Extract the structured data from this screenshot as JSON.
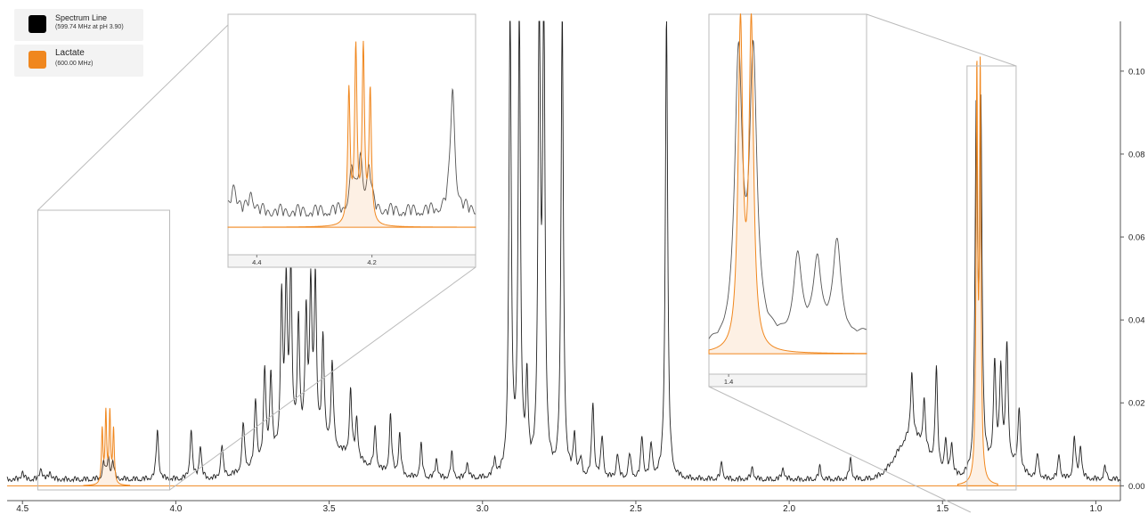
{
  "legend": [
    {
      "name": "Spectrum Line",
      "sub": "(599.74 MHz at pH 3.90)",
      "color": "#000000"
    },
    {
      "name": "Lactate",
      "sub": "(600.00 MHz)",
      "color": "#f0871e"
    }
  ],
  "chart_data": {
    "type": "line",
    "xlabel": "",
    "ylabel": "",
    "x_reversed": true,
    "xlim": [
      4.55,
      0.92
    ],
    "ylim": [
      -0.001,
      0.112
    ],
    "grid": false,
    "x_ticks": [
      "4.5",
      "4.0",
      "3.5",
      "3.0",
      "2.5",
      "2.0",
      "1.5",
      "1.0"
    ],
    "y_ticks": [
      "0.00",
      "0.02",
      "0.04",
      "0.06",
      "0.08",
      "0.10"
    ],
    "series": [
      {
        "name": "Spectrum Line",
        "color": "#000000",
        "peaks": [
          {
            "ppm": 4.5,
            "height": 0.002
          },
          {
            "ppm": 4.44,
            "height": 0.003
          },
          {
            "ppm": 4.41,
            "height": 0.002
          },
          {
            "ppm": 4.235,
            "height": 0.004
          },
          {
            "ppm": 4.22,
            "height": 0.005
          },
          {
            "ppm": 4.205,
            "height": 0.004
          },
          {
            "ppm": 4.06,
            "height": 0.012
          },
          {
            "ppm": 3.95,
            "height": 0.012
          },
          {
            "ppm": 3.92,
            "height": 0.008
          },
          {
            "ppm": 3.85,
            "height": 0.008
          },
          {
            "ppm": 3.78,
            "height": 0.012
          },
          {
            "ppm": 3.74,
            "height": 0.016
          },
          {
            "ppm": 3.71,
            "height": 0.022
          },
          {
            "ppm": 3.69,
            "height": 0.02
          },
          {
            "ppm": 3.655,
            "height": 0.036
          },
          {
            "ppm": 3.64,
            "height": 0.038
          },
          {
            "ppm": 3.625,
            "height": 0.042
          },
          {
            "ppm": 3.6,
            "height": 0.03
          },
          {
            "ppm": 3.575,
            "height": 0.03
          },
          {
            "ppm": 3.56,
            "height": 0.036
          },
          {
            "ppm": 3.545,
            "height": 0.038
          },
          {
            "ppm": 3.52,
            "height": 0.025
          },
          {
            "ppm": 3.49,
            "height": 0.02
          },
          {
            "ppm": 3.43,
            "height": 0.016
          },
          {
            "ppm": 3.41,
            "height": 0.01
          },
          {
            "ppm": 3.35,
            "height": 0.01
          },
          {
            "ppm": 3.3,
            "height": 0.014
          },
          {
            "ppm": 3.27,
            "height": 0.01
          },
          {
            "ppm": 3.2,
            "height": 0.008
          },
          {
            "ppm": 3.15,
            "height": 0.005
          },
          {
            "ppm": 3.1,
            "height": 0.006
          },
          {
            "ppm": 3.05,
            "height": 0.004
          },
          {
            "ppm": 2.96,
            "height": 0.004
          },
          {
            "ppm": 2.91,
            "height": 0.112
          },
          {
            "ppm": 2.88,
            "height": 0.112
          },
          {
            "ppm": 2.855,
            "height": 0.022
          },
          {
            "ppm": 2.815,
            "height": 0.112
          },
          {
            "ppm": 2.8,
            "height": 0.112
          },
          {
            "ppm": 2.74,
            "height": 0.112
          },
          {
            "ppm": 2.7,
            "height": 0.01
          },
          {
            "ppm": 2.68,
            "height": 0.004
          },
          {
            "ppm": 2.64,
            "height": 0.018
          },
          {
            "ppm": 2.61,
            "height": 0.01
          },
          {
            "ppm": 2.56,
            "height": 0.006
          },
          {
            "ppm": 2.52,
            "height": 0.006
          },
          {
            "ppm": 2.48,
            "height": 0.01
          },
          {
            "ppm": 2.45,
            "height": 0.008
          },
          {
            "ppm": 2.4,
            "height": 0.112
          },
          {
            "ppm": 2.22,
            "height": 0.004
          },
          {
            "ppm": 2.12,
            "height": 0.003
          },
          {
            "ppm": 2.02,
            "height": 0.003
          },
          {
            "ppm": 1.9,
            "height": 0.003
          },
          {
            "ppm": 1.8,
            "height": 0.005
          },
          {
            "ppm": 1.6,
            "height": 0.016
          },
          {
            "ppm": 1.56,
            "height": 0.012
          },
          {
            "ppm": 1.52,
            "height": 0.024
          },
          {
            "ppm": 1.49,
            "height": 0.008
          },
          {
            "ppm": 1.47,
            "height": 0.008
          },
          {
            "ppm": 1.39,
            "height": 0.085
          },
          {
            "ppm": 1.375,
            "height": 0.085
          },
          {
            "ppm": 1.33,
            "height": 0.024
          },
          {
            "ppm": 1.31,
            "height": 0.022
          },
          {
            "ppm": 1.29,
            "height": 0.028
          },
          {
            "ppm": 1.25,
            "height": 0.015
          },
          {
            "ppm": 1.19,
            "height": 0.006
          },
          {
            "ppm": 1.12,
            "height": 0.006
          },
          {
            "ppm": 1.07,
            "height": 0.01
          },
          {
            "ppm": 1.05,
            "height": 0.008
          },
          {
            "ppm": 0.97,
            "height": 0.003
          }
        ]
      },
      {
        "name": "Lactate",
        "color": "#f0871e",
        "peaks": [
          {
            "ppm": 4.24,
            "height": 0.013
          },
          {
            "ppm": 4.228,
            "height": 0.017
          },
          {
            "ppm": 4.215,
            "height": 0.017
          },
          {
            "ppm": 4.203,
            "height": 0.013
          },
          {
            "ppm": 1.388,
            "height": 0.097
          },
          {
            "ppm": 1.377,
            "height": 0.097
          }
        ]
      }
    ],
    "insets": [
      {
        "x_range": [
          4.45,
          4.02
        ],
        "x_ticks": [
          "4.4",
          "4.2"
        ]
      },
      {
        "x_range": [
          1.42,
          1.26
        ],
        "x_ticks": [
          "1.4"
        ]
      }
    ]
  }
}
